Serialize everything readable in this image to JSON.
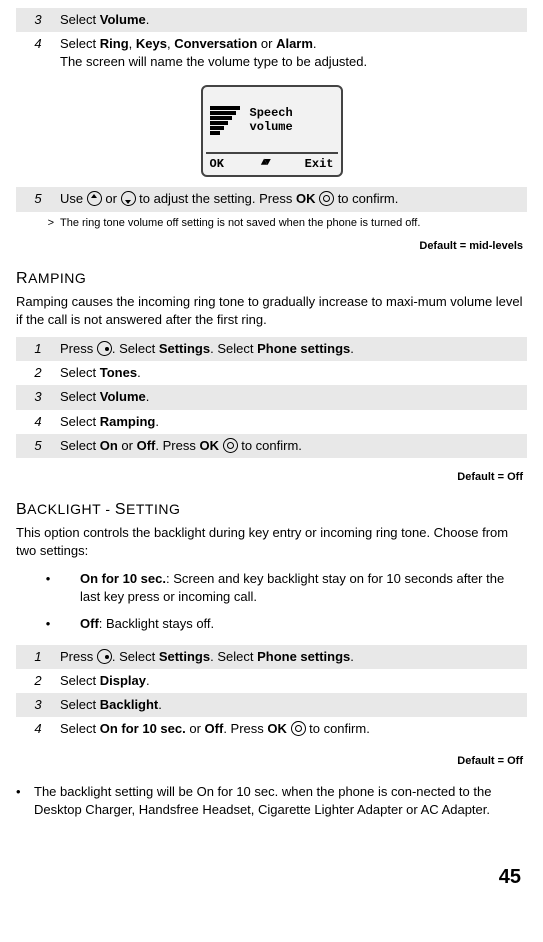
{
  "top_steps": [
    {
      "num": "3",
      "html": "Select <b>Volume</b>.",
      "shaded": true
    },
    {
      "num": "4",
      "html": "Select <b>Ring</b>, <b>Keys</b>, <b>Conversation</b> or <b>Alarm</b>.<br>The screen will name the volume type to be adjusted.",
      "shaded": false
    }
  ],
  "lcd": {
    "line1": "Speech",
    "line2": "volume",
    "left": "OK",
    "right": "Exit"
  },
  "step5": {
    "num": "5",
    "pre": "Use ",
    "mid": " or ",
    "post1": " to adjust the setting. Press ",
    "ok": "OK",
    "post2": " to confirm."
  },
  "gt_note": "The ring tone volume off setting is not saved when the phone is turned off.",
  "default1": "Default = mid-levels",
  "ramping_head": "Ramping",
  "ramping_para": "Ramping causes the incoming ring tone to gradually increase to maxi-\nmum volume level if the call is not answered after the first ring.",
  "ramping_steps": [
    {
      "num": "1",
      "html": "Press <span class='key-circle center'></span>. Select <b>Settings</b>. Select <b>Phone settings</b>."
    },
    {
      "num": "2",
      "html": "Select <b>Tones</b>."
    },
    {
      "num": "3",
      "html": "Select <b>Volume</b>."
    },
    {
      "num": "4",
      "html": "Select <b>Ramping</b>."
    },
    {
      "num": "5",
      "html": "Select <b>On</b> or <b>Off</b>. Press <b>OK</b> <span class='key-circle nav'></span> to confirm."
    }
  ],
  "default2": "Default = Off",
  "backlight_head": "Backlight - Setting",
  "backlight_para": "This option controls the backlight during key entry or incoming ring tone. Choose from two settings:",
  "backlight_bullets": [
    "<b>On for 10 sec.</b>: Screen and key backlight stay on for 10 seconds after the last key press or incoming call.",
    "<b>Off</b>: Backlight stays off."
  ],
  "backlight_steps": [
    {
      "num": "1",
      "html": "Press <span class='key-circle center'></span>. Select <b>Settings</b>. Select <b>Phone settings</b>."
    },
    {
      "num": "2",
      "html": "Select <b>Display</b>."
    },
    {
      "num": "3",
      "html": "Select <b>Backlight</b>."
    },
    {
      "num": "4",
      "html": "Select <b>On for 10 sec.</b> or <b>Off</b>. Press <b>OK</b> <span class='key-circle nav'></span> to confirm."
    }
  ],
  "default3": "Default = Off",
  "footer_bullet": "The backlight setting will be On for 10 sec. when the phone is con-\nnected to the Desktop Charger, Handsfree Headset, Cigarette Lighter Adapter or AC Adapter.",
  "page_num": "45"
}
